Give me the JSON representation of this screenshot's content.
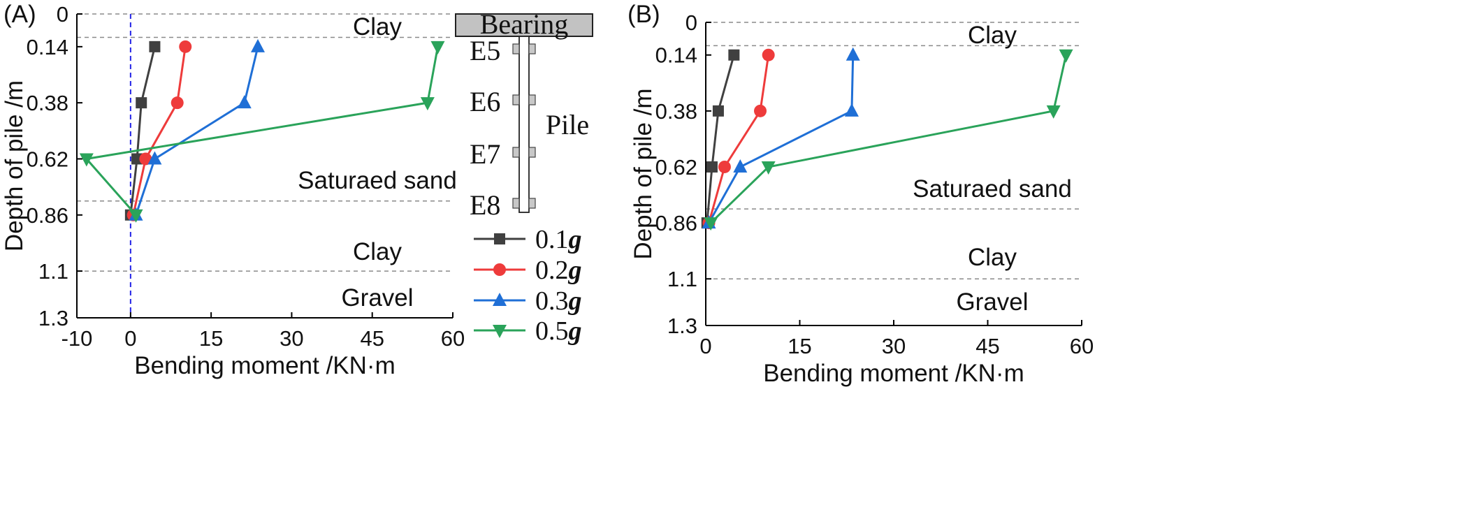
{
  "chart_data": [
    {
      "panel": "(A)",
      "type": "line",
      "xlabel": "Bending moment /KN·m",
      "ylabel": "Depth of pile /m",
      "xlim": [
        -10,
        60
      ],
      "ylim": [
        1.3,
        0
      ],
      "xticks": [
        "-10",
        "0",
        "15",
        "30",
        "45",
        "60"
      ],
      "yticks": [
        "0",
        "0.14",
        "0.38",
        "0.62",
        "0.86",
        "1.1",
        "1.3"
      ],
      "y_inverted": true,
      "layer_boundaries": [
        0,
        0.1,
        0.8,
        1.1
      ],
      "zero_reference_line": true,
      "soil_layers": [
        "Clay",
        "Saturaed sand",
        "Clay",
        "Gravel"
      ],
      "schematic": {
        "bearing_label": "Bearing",
        "pile_label": "Pile",
        "gauges": [
          "E5",
          "E6",
          "E7",
          "E8"
        ]
      },
      "series": [
        {
          "name": "0.1g",
          "color": "#404040",
          "marker": "square",
          "x": [
            4.5,
            2.0,
            1.2,
            0.0
          ],
          "y": [
            0.14,
            0.38,
            0.62,
            0.86
          ]
        },
        {
          "name": "0.2g",
          "color": "#ee3b3b",
          "marker": "circle",
          "x": [
            10.2,
            8.7,
            2.8,
            0.5
          ],
          "y": [
            0.14,
            0.38,
            0.62,
            0.86
          ]
        },
        {
          "name": "0.3g",
          "color": "#1f6fd6",
          "marker": "triangle-up",
          "x": [
            23.7,
            21.2,
            4.5,
            1.0
          ],
          "y": [
            0.14,
            0.38,
            0.62,
            0.86
          ]
        },
        {
          "name": "0.5g",
          "color": "#2aa35a",
          "marker": "triangle-down",
          "x": [
            57.2,
            55.3,
            -8.2,
            1.0
          ],
          "y": [
            0.14,
            0.38,
            0.62,
            0.86
          ]
        }
      ]
    },
    {
      "panel": "(B)",
      "type": "line",
      "xlabel": "Bending moment /KN·m",
      "ylabel": "Depth of pile /m",
      "xlim": [
        0,
        60
      ],
      "ylim": [
        1.3,
        0
      ],
      "xticks": [
        "0",
        "15",
        "30",
        "45",
        "60"
      ],
      "yticks": [
        "0",
        "0.14",
        "0.38",
        "0.62",
        "0.86",
        "1.1",
        "1.3"
      ],
      "y_inverted": true,
      "layer_boundaries": [
        0,
        0.1,
        0.8,
        1.1
      ],
      "soil_layers": [
        "Clay",
        "Saturaed sand",
        "Clay",
        "Gravel"
      ],
      "series": [
        {
          "name": "0.1g",
          "color": "#404040",
          "marker": "square",
          "x": [
            4.5,
            2.0,
            1.0,
            0.2
          ],
          "y": [
            0.14,
            0.38,
            0.62,
            0.86
          ]
        },
        {
          "name": "0.2g",
          "color": "#ee3b3b",
          "marker": "circle",
          "x": [
            10.0,
            8.7,
            3.0,
            0.5
          ],
          "y": [
            0.14,
            0.38,
            0.62,
            0.86
          ]
        },
        {
          "name": "0.3g",
          "color": "#1f6fd6",
          "marker": "triangle-up",
          "x": [
            23.5,
            23.3,
            5.5,
            0.5
          ],
          "y": [
            0.14,
            0.38,
            0.62,
            0.86
          ]
        },
        {
          "name": "0.5g",
          "color": "#2aa35a",
          "marker": "triangle-down",
          "x": [
            57.5,
            55.5,
            10.0,
            0.8
          ],
          "y": [
            0.14,
            0.38,
            0.62,
            0.86
          ]
        }
      ]
    }
  ],
  "legend": {
    "items": [
      {
        "prefix": "0.1",
        "suffix": "g",
        "color": "#404040",
        "marker": "square"
      },
      {
        "prefix": "0.2",
        "suffix": "g",
        "color": "#ee3b3b",
        "marker": "circle"
      },
      {
        "prefix": "0.3",
        "suffix": "g",
        "color": "#1f6fd6",
        "marker": "triangle-up"
      },
      {
        "prefix": "0.5",
        "suffix": "g",
        "color": "#2aa35a",
        "marker": "triangle-down"
      }
    ]
  }
}
